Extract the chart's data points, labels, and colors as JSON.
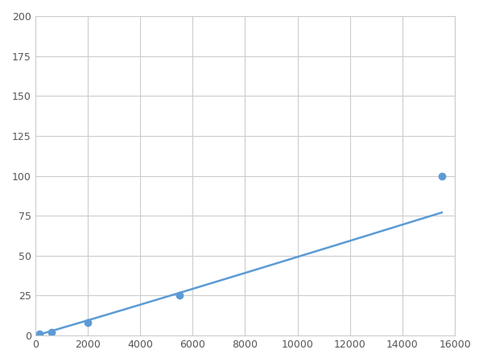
{
  "x_points": [
    156,
    625,
    2000,
    5500,
    15500
  ],
  "y_points": [
    1.0,
    2.0,
    8.0,
    25.0,
    100.0
  ],
  "line_color": "#5b9bd5",
  "marker_color": "#5b9bd5",
  "marker_size": 6,
  "line_width": 1.8,
  "xlim": [
    0,
    16000
  ],
  "ylim": [
    0,
    200
  ],
  "xticks": [
    0,
    2000,
    4000,
    6000,
    8000,
    10000,
    12000,
    14000,
    16000
  ],
  "yticks": [
    0,
    25,
    50,
    75,
    100,
    125,
    150,
    175,
    200
  ],
  "grid_color": "#cccccc",
  "background_color": "#ffffff",
  "figsize": [
    6.0,
    4.5
  ],
  "dpi": 100
}
